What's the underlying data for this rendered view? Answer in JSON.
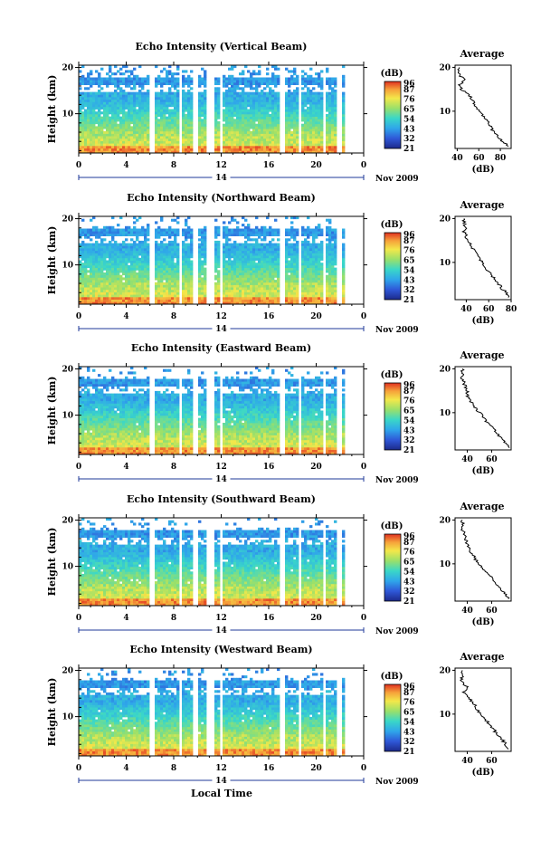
{
  "figure": {
    "date_label": "Nov 2009",
    "day_label": "14",
    "xlabel": "Local Time",
    "ylabel": "Height (km)",
    "colorbar_unit": "(dB)",
    "average_title": "Average",
    "average_xlabel": "(dB)"
  },
  "chart_data": [
    {
      "type": "heatmap",
      "title": "Echo Intensity (Vertical Beam)",
      "xlabel": "",
      "ylabel": "Height (km)",
      "x_ticks": [
        "0",
        "4",
        "8",
        "12",
        "16",
        "20",
        "0"
      ],
      "y_ticks": [
        "20",
        "10"
      ],
      "xlim": [
        0,
        24
      ],
      "ylim": [
        1.5,
        20.5
      ],
      "colorbar_ticks": [
        "96",
        "87",
        "76",
        "65",
        "54",
        "43",
        "32",
        "21"
      ],
      "colorbar_range": [
        21,
        96
      ],
      "data_gaps_hours": [
        [
          6.0,
          6.3
        ],
        [
          8.4,
          8.7
        ],
        [
          9.7,
          10.1
        ],
        [
          10.7,
          11.5
        ],
        [
          11.9,
          12.2
        ],
        [
          17.0,
          17.3
        ],
        [
          18.5,
          18.8
        ],
        [
          20.5,
          20.9
        ],
        [
          21.8,
          22.2
        ]
      ],
      "average": {
        "title": "Average",
        "xlabel": "(dB)",
        "x_ticks": [
          "40",
          "60",
          "80"
        ],
        "xlim": [
          38,
          90
        ],
        "y_ticks": [
          "20",
          "10"
        ],
        "height_km": [
          2,
          3,
          4,
          5,
          6,
          7,
          8,
          9,
          10,
          11,
          12,
          13,
          14,
          15,
          16,
          17,
          18,
          19,
          20
        ],
        "value_db": [
          88,
          82,
          78,
          75,
          72,
          70,
          67,
          64,
          61,
          58,
          55,
          53,
          50,
          44,
          41,
          47,
          43,
          42,
          42
        ]
      }
    },
    {
      "type": "heatmap",
      "title": "Echo Intensity (Northward Beam)",
      "xlabel": "",
      "ylabel": "Height (km)",
      "x_ticks": [
        "0",
        "4",
        "8",
        "12",
        "16",
        "20",
        "0"
      ],
      "y_ticks": [
        "20",
        "10"
      ],
      "xlim": [
        0,
        24
      ],
      "ylim": [
        1.5,
        20.5
      ],
      "colorbar_ticks": [
        "96",
        "87",
        "76",
        "65",
        "54",
        "43",
        "32",
        "21"
      ],
      "colorbar_range": [
        21,
        96
      ],
      "data_gaps_hours": [
        [
          6.0,
          6.3
        ],
        [
          8.4,
          8.7
        ],
        [
          9.7,
          10.1
        ],
        [
          10.7,
          11.5
        ],
        [
          11.9,
          12.2
        ],
        [
          17.0,
          17.3
        ],
        [
          18.5,
          18.8
        ],
        [
          20.5,
          20.9
        ],
        [
          21.8,
          22.2
        ]
      ],
      "average": {
        "title": "Average",
        "xlabel": "(dB)",
        "x_ticks": [
          "40",
          "60",
          "80"
        ],
        "xlim": [
          30,
          80
        ],
        "y_ticks": [
          "20",
          "10"
        ],
        "height_km": [
          2,
          3,
          4,
          5,
          6,
          7,
          8,
          9,
          10,
          11,
          12,
          13,
          14,
          15,
          16,
          17,
          18,
          19,
          20
        ],
        "value_db": [
          79,
          76,
          72,
          69,
          66,
          63,
          60,
          57,
          54,
          52,
          49,
          46,
          44,
          41,
          40,
          38,
          39,
          38,
          38
        ]
      }
    },
    {
      "type": "heatmap",
      "title": "Echo Intensity (Eastward Beam)",
      "xlabel": "",
      "ylabel": "Height (km)",
      "x_ticks": [
        "0",
        "4",
        "8",
        "12",
        "16",
        "20",
        "0"
      ],
      "y_ticks": [
        "20",
        "10"
      ],
      "xlim": [
        0,
        24
      ],
      "ylim": [
        1.5,
        20.5
      ],
      "colorbar_ticks": [
        "96",
        "87",
        "76",
        "65",
        "54",
        "43",
        "32",
        "21"
      ],
      "colorbar_range": [
        21,
        96
      ],
      "data_gaps_hours": [
        [
          6.0,
          6.3
        ],
        [
          8.4,
          8.7
        ],
        [
          9.7,
          10.1
        ],
        [
          10.7,
          11.5
        ],
        [
          11.9,
          12.2
        ],
        [
          17.0,
          17.3
        ],
        [
          18.5,
          18.8
        ],
        [
          20.5,
          20.9
        ],
        [
          21.8,
          22.2
        ]
      ],
      "average": {
        "title": "Average",
        "xlabel": "(dB)",
        "x_ticks": [
          "40",
          "60"
        ],
        "xlim": [
          30,
          76
        ],
        "y_ticks": [
          "20",
          "10"
        ],
        "height_km": [
          2,
          3,
          4,
          5,
          6,
          7,
          8,
          9,
          10,
          11,
          12,
          13,
          14,
          15,
          16,
          17,
          18,
          19,
          20
        ],
        "value_db": [
          74,
          71,
          68,
          65,
          62,
          59,
          56,
          53,
          50,
          47,
          45,
          42,
          40,
          40,
          38,
          37,
          36,
          36,
          36
        ]
      }
    },
    {
      "type": "heatmap",
      "title": "Echo Intensity (Southward Beam)",
      "xlabel": "",
      "ylabel": "Height (km)",
      "x_ticks": [
        "0",
        "4",
        "8",
        "12",
        "16",
        "20",
        "0"
      ],
      "y_ticks": [
        "20",
        "10"
      ],
      "xlim": [
        0,
        24
      ],
      "ylim": [
        1.5,
        20.5
      ],
      "colorbar_ticks": [
        "96",
        "87",
        "76",
        "65",
        "54",
        "43",
        "32",
        "21"
      ],
      "colorbar_range": [
        21,
        96
      ],
      "data_gaps_hours": [
        [
          6.0,
          6.3
        ],
        [
          8.4,
          8.7
        ],
        [
          9.7,
          10.1
        ],
        [
          10.7,
          11.5
        ],
        [
          11.9,
          12.2
        ],
        [
          17.0,
          17.3
        ],
        [
          18.5,
          18.8
        ],
        [
          20.5,
          20.9
        ],
        [
          21.8,
          22.2
        ]
      ],
      "average": {
        "title": "Average",
        "xlabel": "(dB)",
        "x_ticks": [
          "40",
          "60"
        ],
        "xlim": [
          30,
          76
        ],
        "y_ticks": [
          "20",
          "10"
        ],
        "height_km": [
          2,
          3,
          4,
          5,
          6,
          7,
          8,
          9,
          10,
          11,
          12,
          13,
          14,
          15,
          16,
          17,
          18,
          19,
          20
        ],
        "value_db": [
          74,
          71,
          68,
          65,
          62,
          59,
          56,
          53,
          50,
          47,
          45,
          42,
          40,
          39,
          38,
          37,
          36,
          36,
          36
        ]
      }
    },
    {
      "type": "heatmap",
      "title": "Echo Intensity (Westward Beam)",
      "xlabel": "Local Time",
      "ylabel": "Height (km)",
      "x_ticks": [
        "0",
        "4",
        "8",
        "12",
        "16",
        "20",
        "0"
      ],
      "y_ticks": [
        "20",
        "10"
      ],
      "xlim": [
        0,
        24
      ],
      "ylim": [
        1.5,
        20.5
      ],
      "colorbar_ticks": [
        "96",
        "87",
        "76",
        "65",
        "54",
        "43",
        "32",
        "21"
      ],
      "colorbar_range": [
        21,
        96
      ],
      "data_gaps_hours": [
        [
          6.0,
          6.3
        ],
        [
          8.4,
          8.7
        ],
        [
          9.7,
          10.1
        ],
        [
          10.7,
          11.5
        ],
        [
          11.9,
          12.2
        ],
        [
          17.0,
          17.3
        ],
        [
          18.5,
          18.8
        ],
        [
          20.5,
          20.9
        ],
        [
          21.8,
          22.2
        ]
      ],
      "average": {
        "title": "Average",
        "xlabel": "(dB)",
        "x_ticks": [
          "40",
          "60"
        ],
        "xlim": [
          30,
          76
        ],
        "y_ticks": [
          "20",
          "10"
        ],
        "height_km": [
          2,
          3,
          4,
          5,
          6,
          7,
          8,
          9,
          10,
          11,
          12,
          13,
          14,
          15,
          16,
          17,
          18,
          19,
          20
        ],
        "value_db": [
          75,
          72,
          69,
          66,
          63,
          60,
          57,
          54,
          51,
          48,
          46,
          43,
          41,
          37,
          40,
          37,
          35,
          36,
          36
        ]
      }
    }
  ]
}
